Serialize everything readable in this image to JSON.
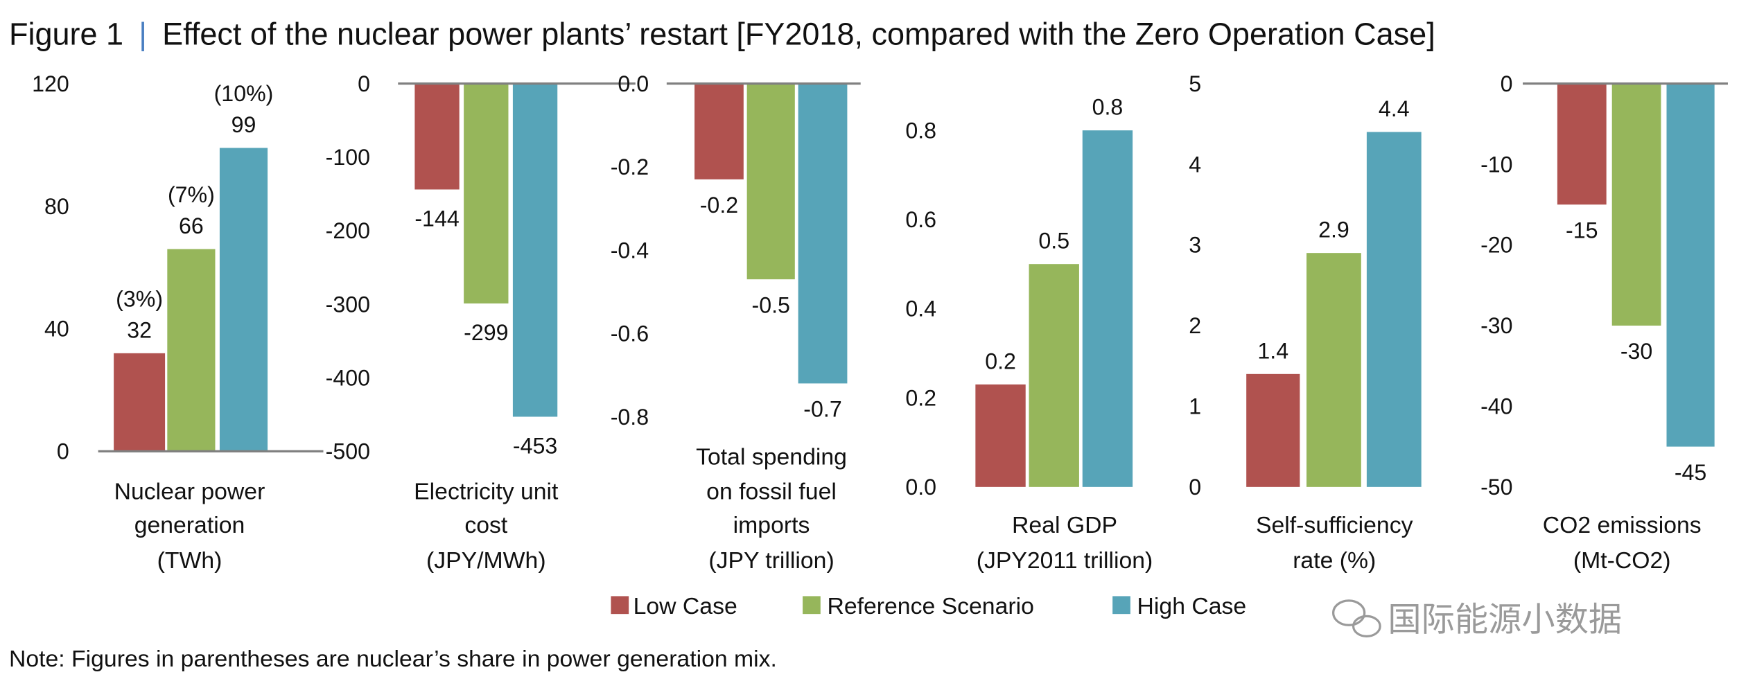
{
  "title": {
    "figure": "Figure 1",
    "separator": "|",
    "text": "Effect of the nuclear power plants’ restart [FY2018, compared with the Zero Operation Case]"
  },
  "colors": {
    "low": "#b0524f",
    "reference": "#96b65b",
    "high": "#57a4b8",
    "separator": "#4a7fc1",
    "baseline": "#808080"
  },
  "legend": {
    "position": "bottom",
    "items": [
      {
        "key": "low",
        "label": "Low Case"
      },
      {
        "key": "reference",
        "label": "Reference Scenario"
      },
      {
        "key": "high",
        "label": "High Case"
      }
    ]
  },
  "note": "Note: Figures in parentheses are nuclear’s share in power generation mix.",
  "watermark": {
    "icon": "wechat-icon",
    "text": "国际能源小数据"
  },
  "chart_data": [
    {
      "type": "bar",
      "label_lines": [
        "Nuclear power",
        "generation",
        "(TWh)"
      ],
      "ylim": [
        0,
        120
      ],
      "ticks": [
        "0",
        "40",
        "80",
        "120"
      ],
      "tick_values": [
        0,
        40,
        80,
        120
      ],
      "series": [
        "Low Case",
        "Reference Scenario",
        "High Case"
      ],
      "values": [
        32,
        66,
        99
      ],
      "labels": [
        "32",
        "66",
        "99"
      ],
      "shares": [
        "(3%)",
        "(7%)",
        "(10%)"
      ]
    },
    {
      "type": "bar",
      "label_lines": [
        "Electricity unit",
        "cost",
        "(JPY/MWh)"
      ],
      "ylim": [
        -500,
        0
      ],
      "ticks": [
        "0",
        "-100",
        "-200",
        "-300",
        "-400",
        "-500"
      ],
      "tick_values": [
        0,
        -100,
        -200,
        -300,
        -400,
        -500
      ],
      "series": [
        "Low Case",
        "Reference Scenario",
        "High Case"
      ],
      "values": [
        -144,
        -299,
        -453
      ],
      "labels": [
        "-144",
        "-299",
        "-453"
      ]
    },
    {
      "type": "bar",
      "label_lines": [
        "Total spending",
        "on fossil fuel",
        "imports",
        "(JPY trillion)"
      ],
      "ylim": [
        -0.8,
        0
      ],
      "ticks": [
        "0.0",
        "-0.2",
        "-0.4",
        "-0.6",
        "-0.8"
      ],
      "tick_values": [
        0,
        -0.2,
        -0.4,
        -0.6,
        -0.8
      ],
      "series": [
        "Low Case",
        "Reference Scenario",
        "High Case"
      ],
      "values": [
        -0.23,
        -0.47,
        -0.72
      ],
      "labels": [
        "-0.2",
        "-0.5",
        "-0.7"
      ]
    },
    {
      "type": "bar",
      "label_lines": [
        "Real GDP",
        "(JPY2011 trillion)"
      ],
      "ylim": [
        0,
        0.9
      ],
      "ticks": [
        "0.0",
        "0.2",
        "0.4",
        "0.6",
        "0.8"
      ],
      "tick_values": [
        0,
        0.2,
        0.4,
        0.6,
        0.8
      ],
      "series": [
        "Low Case",
        "Reference Scenario",
        "High Case"
      ],
      "values": [
        0.23,
        0.5,
        0.8
      ],
      "labels": [
        "0.2",
        "0.5",
        "0.8"
      ]
    },
    {
      "type": "bar",
      "label_lines": [
        "Self-sufficiency",
        "rate (%)"
      ],
      "ylim": [
        0,
        5
      ],
      "ticks": [
        "0",
        "1",
        "2",
        "3",
        "4",
        "5"
      ],
      "tick_values": [
        0,
        1,
        2,
        3,
        4,
        5
      ],
      "series": [
        "Low Case",
        "Reference Scenario",
        "High Case"
      ],
      "values": [
        1.4,
        2.9,
        4.4
      ],
      "labels": [
        "1.4",
        "2.9",
        "4.4"
      ]
    },
    {
      "type": "bar",
      "label_lines": [
        "CO2 emissions",
        "(Mt-CO2)"
      ],
      "ylim": [
        -50,
        0
      ],
      "ticks": [
        "0",
        "-10",
        "-20",
        "-30",
        "-40",
        "-50"
      ],
      "tick_values": [
        0,
        -10,
        -20,
        -30,
        -40,
        -50
      ],
      "series": [
        "Low Case",
        "Reference Scenario",
        "High Case"
      ],
      "values": [
        -15,
        -30,
        -45
      ],
      "labels": [
        "-15",
        "-30",
        "-45"
      ]
    }
  ]
}
